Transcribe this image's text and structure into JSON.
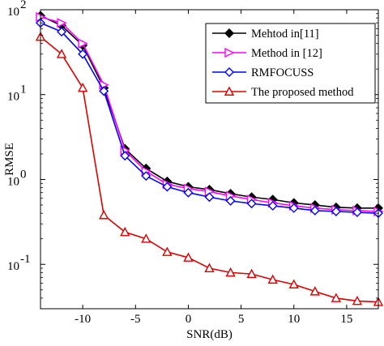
{
  "chart_data": {
    "type": "line",
    "xlabel": "SNR(dB)",
    "ylabel": "RMSE",
    "xlim": [
      -14,
      18
    ],
    "ylim": [
      0.03,
      100
    ],
    "yscale": "log",
    "x_ticks": [
      -10,
      -5,
      0,
      5,
      10,
      15
    ],
    "x_tick_labels": [
      "-10",
      "-5",
      "0",
      "5",
      "10",
      "15"
    ],
    "y_ticks": [
      0.1,
      1,
      10,
      100
    ],
    "y_tick_labels": [
      {
        "base": "10",
        "exp": "-1"
      },
      {
        "base": "10",
        "exp": "0"
      },
      {
        "base": "10",
        "exp": "1"
      },
      {
        "base": "10",
        "exp": "2"
      }
    ],
    "grid": false,
    "legend_position": "top-right",
    "x": [
      -14,
      -12,
      -10,
      -8,
      -6,
      -4,
      -2,
      0,
      2,
      4,
      6,
      8,
      10,
      12,
      14,
      16,
      18
    ],
    "series": [
      {
        "name": "Mehtod in[11]",
        "color": "#000000",
        "marker": "diamond-filled",
        "values": [
          85,
          65,
          38,
          12,
          2.3,
          1.35,
          0.95,
          0.82,
          0.76,
          0.68,
          0.62,
          0.58,
          0.53,
          0.5,
          0.47,
          0.46,
          0.46
        ]
      },
      {
        "name": "Method in [12]",
        "color": "#ff00ff",
        "marker": "triangle-right",
        "values": [
          82,
          70,
          40,
          13,
          2.2,
          1.25,
          0.88,
          0.78,
          0.72,
          0.64,
          0.58,
          0.53,
          0.49,
          0.46,
          0.44,
          0.43,
          0.42
        ]
      },
      {
        "name": "RMFOCUSS",
        "color": "#0000ff",
        "marker": "diamond-open",
        "values": [
          70,
          55,
          30,
          11,
          1.9,
          1.1,
          0.82,
          0.7,
          0.62,
          0.56,
          0.52,
          0.49,
          0.46,
          0.43,
          0.42,
          0.41,
          0.4
        ]
      },
      {
        "name": "The proposed method",
        "color": "#dd0000",
        "marker": "triangle-up",
        "values": [
          48,
          30,
          12,
          0.38,
          0.24,
          0.2,
          0.14,
          0.12,
          0.09,
          0.08,
          0.077,
          0.066,
          0.058,
          0.048,
          0.04,
          0.037,
          0.036
        ]
      }
    ]
  }
}
